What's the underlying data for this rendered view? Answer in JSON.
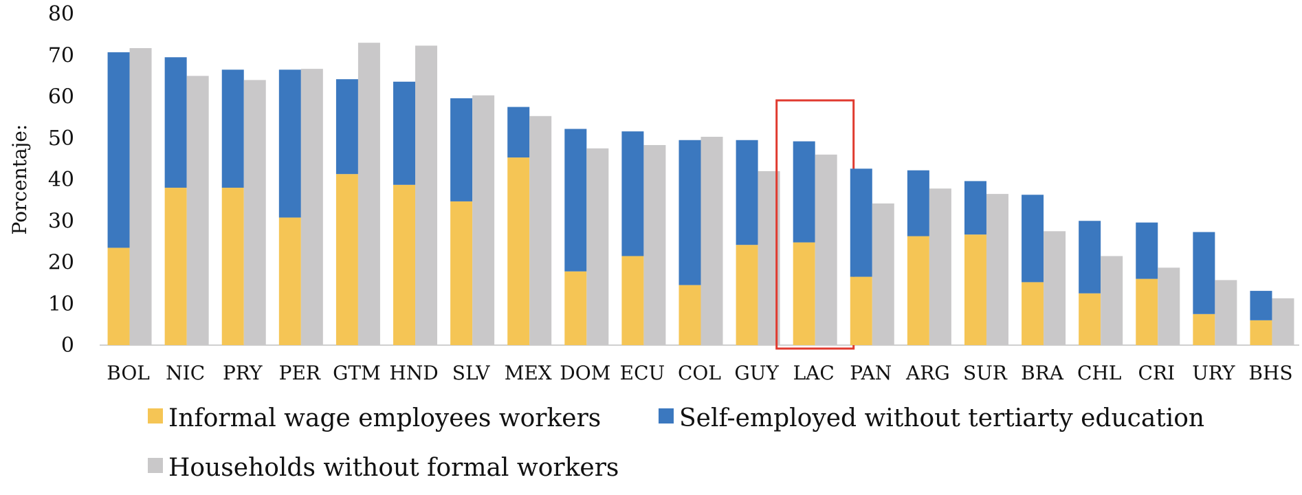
{
  "chart_data": {
    "type": "bar",
    "categories": [
      "BOL",
      "NIC",
      "PRY",
      "PER",
      "GTM",
      "HND",
      "SLV",
      "MEX",
      "DOM",
      "ECU",
      "COL",
      "GUY",
      "LAC",
      "PAN",
      "ARG",
      "SUR",
      "BRA",
      "CHL",
      "CRI",
      "URY",
      "BHS"
    ],
    "series": [
      {
        "name": "Informal wage employees workers",
        "stack": "a",
        "color": "#F5C555",
        "values": [
          23.5,
          38.0,
          38.0,
          30.8,
          41.3,
          38.7,
          34.7,
          45.3,
          17.8,
          21.5,
          14.5,
          24.2,
          24.8,
          16.5,
          26.3,
          26.7,
          15.2,
          12.5,
          16.0,
          7.5,
          6.0
        ]
      },
      {
        "name": "Self-employed without tertiarty education",
        "stack": "a",
        "color": "#3B78BF",
        "values": [
          47.2,
          31.5,
          28.5,
          35.7,
          22.9,
          24.9,
          24.9,
          12.2,
          34.4,
          30.1,
          35.0,
          25.3,
          24.4,
          26.1,
          15.9,
          12.9,
          21.1,
          17.5,
          13.6,
          19.8,
          7.1
        ]
      },
      {
        "name": "Households without formal workers",
        "stack": "b",
        "color": "#C9C8C9",
        "values": [
          71.7,
          65.0,
          64.0,
          66.7,
          73.0,
          72.3,
          60.3,
          55.3,
          47.5,
          48.3,
          50.3,
          42.0,
          46.0,
          34.2,
          37.8,
          36.5,
          27.5,
          21.5,
          18.7,
          15.7,
          11.3
        ]
      }
    ],
    "ylabel": "Porcentaje:",
    "ylim": [
      0,
      80
    ],
    "yticks": [
      "0",
      "10",
      "20",
      "30",
      "40",
      "50",
      "60",
      "70",
      "80"
    ],
    "grid": false,
    "highlight_category": "LAC",
    "highlight_color": "#E03A2F",
    "legend": {
      "position": "bottom"
    }
  }
}
